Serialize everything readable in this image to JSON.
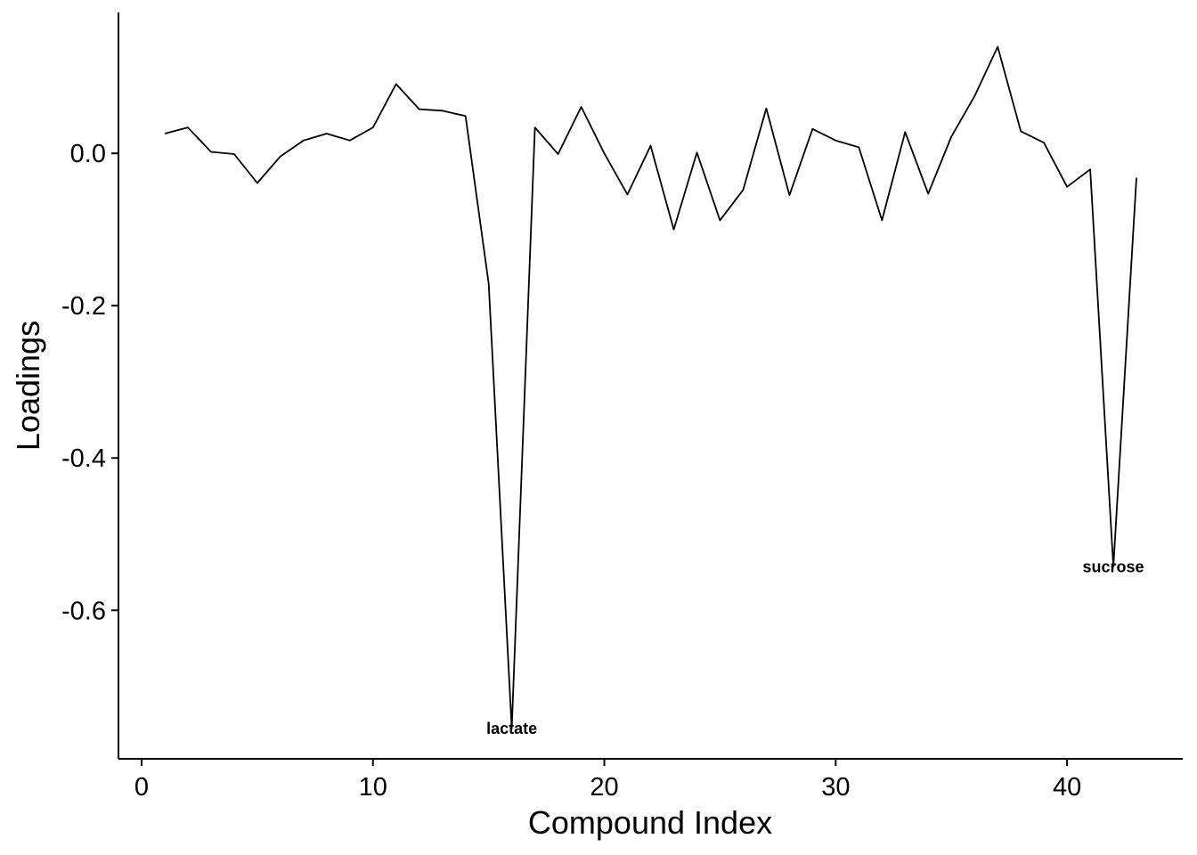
{
  "chart_data": {
    "type": "line",
    "title": "",
    "xlabel": "Compound Index",
    "ylabel": "Loadings",
    "xlim": [
      -1,
      45
    ],
    "ylim": [
      -0.795,
      0.185
    ],
    "x_ticks": [
      0,
      10,
      20,
      30,
      40
    ],
    "x_tick_labels": [
      "0",
      "10",
      "20",
      "30",
      "40"
    ],
    "y_ticks": [
      0.0,
      -0.2,
      -0.4,
      -0.6
    ],
    "y_tick_labels": [
      "0.0",
      "-0.2",
      "-0.4",
      "-0.6"
    ],
    "grid": false,
    "legend": "none",
    "line_color": "#000000",
    "series": [
      {
        "x": [
          1,
          2,
          3,
          4,
          5,
          6,
          7,
          8,
          9,
          10,
          11,
          12,
          13,
          14,
          15,
          16,
          17,
          18,
          19,
          20,
          21,
          22,
          23,
          24,
          25,
          26,
          27,
          28,
          29,
          30,
          31,
          32,
          33,
          34,
          35,
          36,
          37,
          38,
          39,
          40,
          41,
          42,
          43
        ],
        "values": [
          0.026,
          0.034,
          0.002,
          -0.001,
          -0.039,
          -0.004,
          0.017,
          0.026,
          0.017,
          0.034,
          0.091,
          0.058,
          0.056,
          0.049,
          -0.171,
          -0.755,
          0.034,
          -0.001,
          0.061,
          0.0,
          -0.054,
          0.01,
          -0.1,
          0.001,
          -0.088,
          -0.048,
          0.059,
          -0.055,
          0.032,
          0.017,
          0.008,
          -0.088,
          0.028,
          -0.053,
          0.022,
          0.075,
          0.14,
          0.029,
          0.014,
          -0.044,
          -0.021,
          -0.543,
          -0.032
        ]
      }
    ],
    "annotations": [
      {
        "label": "lactate",
        "x": 16,
        "y": -0.755
      },
      {
        "label": "sucrose",
        "x": 42,
        "y": -0.543
      }
    ]
  }
}
